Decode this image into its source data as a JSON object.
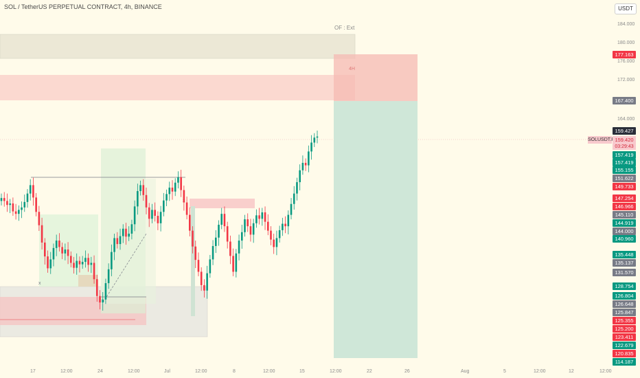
{
  "title": "SOL / TetherUS PERPETUAL CONTRACT, 4h, BINANCE",
  "currency": "USDT",
  "symbol_tag": "SOLUSDT.P",
  "current_price": "159.420",
  "countdown": "03:29:43",
  "annotation_of": "OF : Ext",
  "annotation_4h": "4H",
  "colors": {
    "up": "#089981",
    "down": "#f23645",
    "gray": "#787b86",
    "dark": "#2a2e39"
  },
  "price_ticks": [
    "184.000",
    "180.000",
    "176.000",
    "172.000",
    "164.000"
  ],
  "price_badges": [
    {
      "label": "177.163",
      "color": "down"
    },
    {
      "label": "167.400",
      "color": "gray"
    },
    {
      "label": "159.427",
      "color": "dark"
    },
    {
      "label": "157.419",
      "color": "up"
    },
    {
      "label": "157.419",
      "color": "up"
    },
    {
      "label": "155.155",
      "color": "up"
    },
    {
      "label": "151.622",
      "color": "gray"
    },
    {
      "label": "149.733",
      "color": "down"
    },
    {
      "label": "147.254",
      "color": "down"
    },
    {
      "label": "146.966",
      "color": "down"
    },
    {
      "label": "145.110",
      "color": "gray"
    },
    {
      "label": "144.919",
      "color": "up"
    },
    {
      "label": "144.000",
      "color": "gray"
    },
    {
      "label": "140.960",
      "color": "up"
    },
    {
      "label": "135.448",
      "color": "up"
    },
    {
      "label": "135.137",
      "color": "gray"
    },
    {
      "label": "131.570",
      "color": "gray"
    },
    {
      "label": "128.754",
      "color": "up"
    },
    {
      "label": "126.804",
      "color": "up"
    },
    {
      "label": "126.648",
      "color": "gray"
    },
    {
      "label": "125.847",
      "color": "gray"
    },
    {
      "label": "125.355",
      "color": "down"
    },
    {
      "label": "125.200",
      "color": "down"
    },
    {
      "label": "123.411",
      "color": "down"
    },
    {
      "label": "122.679",
      "color": "up"
    },
    {
      "label": "120.835",
      "color": "down"
    },
    {
      "label": "114.187",
      "color": "up"
    }
  ],
  "date_ticks": [
    "17",
    "12:00",
    "24",
    "12:00",
    "Jul",
    "12:00",
    "8",
    "12:00",
    "15",
    "12:00",
    "22",
    "26",
    "Aug",
    "5",
    "12:00",
    "12",
    "12:00"
  ],
  "chart_data": {
    "type": "candlestick",
    "title": "SOL / TetherUS PERPETUAL CONTRACT, 4h, BINANCE",
    "x_ticks": [
      "17",
      "12:00",
      "24",
      "12:00",
      "Jul",
      "12:00",
      "8",
      "12:00",
      "15",
      "12:00",
      "22",
      "26",
      "Aug",
      "5",
      "12:00",
      "12",
      "12:00"
    ],
    "y_ticks": [
      184,
      180,
      176,
      172,
      164
    ],
    "ylim": [
      113,
      187
    ],
    "last_price": 159.42,
    "close_series": [
      147.0,
      146.4,
      145.6,
      145.9,
      144.3,
      143.8,
      144.6,
      145.1,
      146.2,
      147.9,
      149.6,
      147.1,
      144.2,
      141.5,
      138.0,
      135.2,
      132.8,
      134.6,
      136.9,
      138.4,
      137.1,
      135.8,
      136.6,
      135.3,
      133.9,
      132.9,
      134.3,
      133.6,
      134.1,
      134.9,
      133.5,
      133.9,
      130.6,
      127.2,
      125.9,
      126.5,
      129.8,
      132.6,
      136.1,
      138.9,
      137.7,
      139.3,
      140.8,
      139.2,
      139.8,
      141.7,
      145.3,
      148.4,
      149.6,
      147.6,
      145.1,
      142.8,
      144.6,
      143.4,
      141.9,
      144.2,
      146.5,
      147.8,
      149.1,
      148.3,
      150.1,
      151.2,
      148.6,
      146.1,
      143.6,
      140.4,
      137.2,
      134.5,
      132.1,
      129.4,
      128.3,
      131.8,
      134.6,
      137.3,
      139.0,
      141.6,
      143.8,
      141.3,
      138.2,
      135.3,
      132.1,
      135.8,
      138.4,
      140.1,
      142.7,
      141.3,
      139.6,
      141.9,
      143.5,
      142.8,
      144.1,
      142.2,
      140.4,
      138.6,
      137.1,
      138.9,
      140.5,
      141.8,
      141.3,
      143.6,
      145.8,
      147.9,
      150.2,
      152.6,
      154.1,
      153.6,
      156.4,
      158.2,
      159.2,
      159.42
    ]
  }
}
